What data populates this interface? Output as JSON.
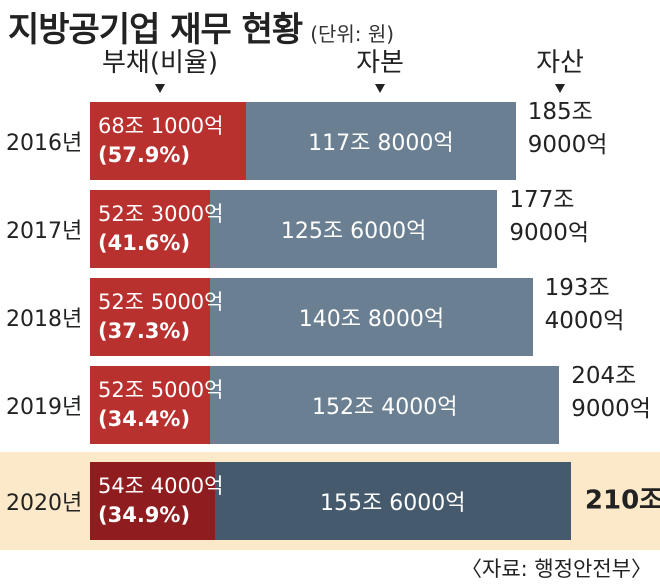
{
  "title": "지방공기업 재무 현황",
  "unit_note": "(단위: 원)",
  "headers": {
    "debt": "부채(비율)",
    "capital": "자본",
    "assets": "자산"
  },
  "source": "〈자료: 행정안전부〉",
  "colors": {
    "debt": "#b8312f",
    "debt_highlight": "#8f1d20",
    "capital": "#6a7f91",
    "capital_highlight": "#465a6d",
    "highlight_background": "#fbe9c9"
  },
  "chart_data": {
    "type": "bar",
    "stacked": true,
    "orientation": "horizontal",
    "categories": [
      "2016년",
      "2017년",
      "2018년",
      "2019년",
      "2020년"
    ],
    "series": [
      {
        "name": "부채(비율)",
        "values": [
          68.1,
          52.3,
          52.5,
          52.5,
          54.4
        ],
        "labels": [
          "68조 1000억",
          "52조 3000억",
          "52조 5000억",
          "52조 5000억",
          "54조 4000억"
        ],
        "ratios": [
          "(57.9%)",
          "(41.6%)",
          "(37.3%)",
          "(34.4%)",
          "(34.9%)"
        ]
      },
      {
        "name": "자본",
        "values": [
          117.8,
          125.6,
          140.8,
          152.4,
          155.6
        ],
        "labels": [
          "117조 8000억",
          "125조 6000억",
          "140조 8000억",
          "152조 4000억",
          "155조 6000억"
        ]
      }
    ],
    "totals": {
      "name": "자산",
      "values": [
        185.9,
        177.9,
        193.4,
        204.9,
        210.0
      ],
      "labels": [
        [
          "185조",
          "9000억"
        ],
        [
          "177조",
          "9000억"
        ],
        [
          "193조",
          "4000억"
        ],
        [
          "204조",
          "9000억"
        ],
        [
          "210조"
        ]
      ]
    },
    "highlight_category": "2020년",
    "value_unit": "조 원"
  }
}
